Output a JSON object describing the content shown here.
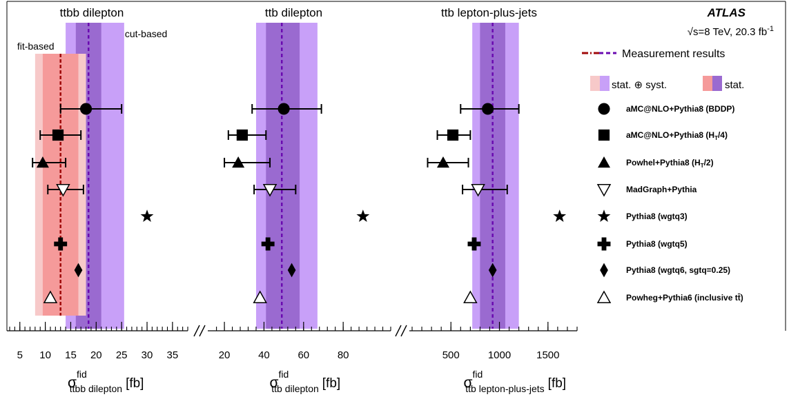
{
  "experiment": "ATLAS",
  "energy": "√s=8 TeV, 20.3 fb",
  "energy_sup": "-1",
  "colors": {
    "cut_outer": "#c8a0f8",
    "cut_inner": "#9a6ad0",
    "cut_line": "#6a0ab0",
    "fit_outer": "#f7c9c9",
    "fit_inner": "#f59a9a",
    "fit_line": "#a00a0a"
  },
  "legend": {
    "measurement": "Measurement results",
    "stat_syst": "stat. ⊕ syst.",
    "stat": "stat.",
    "generators": [
      {
        "marker": "filled-circle",
        "label": "aMC@NLO+Pythia8 (BDDP)"
      },
      {
        "marker": "filled-square",
        "label": "aMC@NLO+Pythia8 (H",
        "sub": "T",
        "tail": "/4)"
      },
      {
        "marker": "filled-triangle",
        "label": "Powhel+Pythia8 (H",
        "sub": "T",
        "tail": "/2)"
      },
      {
        "marker": "open-triangle-down",
        "label": "MadGraph+Pythia"
      },
      {
        "marker": "star",
        "label": "Pythia8 (wgtq3)"
      },
      {
        "marker": "cross",
        "label": "Pythia8 (wgtq5)"
      },
      {
        "marker": "diamond",
        "label": "Pythia8 (wgtq6, sgtq=0.25)"
      },
      {
        "marker": "open-triangle-up",
        "label": "Powheg+Pythia6 (inclusive tt̄)"
      }
    ]
  },
  "chart_data": [
    {
      "type": "scatter",
      "title": "ttbb dilepton",
      "xlabel": "σ",
      "xlabel_sup": "fid",
      "xlabel_sub": "ttbb dilepton",
      "xlabel_unit": "[fb]",
      "xlim": [
        3,
        38
      ],
      "xticks": [
        5,
        10,
        15,
        20,
        25,
        30,
        35
      ],
      "xtick_labels": [
        "5",
        "10",
        "15",
        "20",
        "25",
        "30",
        "35"
      ],
      "measurements": [
        {
          "name": "cut-based",
          "value": 18.5,
          "total": [
            14.0,
            25.5
          ],
          "stat": [
            16.0,
            21.0
          ]
        },
        {
          "name": "fit-based",
          "value": 13.0,
          "total": [
            8.0,
            18.0
          ],
          "stat": [
            9.5,
            16.5
          ]
        }
      ],
      "predictions": [
        {
          "marker": "filled-circle",
          "value": 18.0,
          "err": [
            13.0,
            25.0
          ]
        },
        {
          "marker": "filled-square",
          "value": 12.5,
          "err": [
            9.0,
            17.0
          ]
        },
        {
          "marker": "filled-triangle",
          "value": 9.5,
          "err": [
            7.5,
            14.0
          ]
        },
        {
          "marker": "open-triangle-down",
          "value": 13.5,
          "err": [
            10.5,
            17.5
          ]
        },
        {
          "marker": "star",
          "value": 30.0,
          "err": null
        },
        {
          "marker": "cross",
          "value": 13.0,
          "err": null
        },
        {
          "marker": "diamond",
          "value": 16.5,
          "err": null
        },
        {
          "marker": "open-triangle-up",
          "value": 11.0,
          "err": null
        }
      ]
    },
    {
      "type": "scatter",
      "title": "ttb dilepton",
      "xlabel": "σ",
      "xlabel_sup": "fid",
      "xlabel_sub": "ttb dilepton",
      "xlabel_unit": "[fb]",
      "xlim": [
        13,
        104
      ],
      "xticks": [
        20,
        40,
        60,
        80
      ],
      "xtick_labels": [
        "20",
        "40",
        "60",
        "80"
      ],
      "measurements": [
        {
          "name": "cut-based",
          "value": 49.0,
          "total": [
            36.0,
            67.0
          ],
          "stat": [
            41.0,
            58.0
          ]
        }
      ],
      "predictions": [
        {
          "marker": "filled-circle",
          "value": 50.0,
          "err": [
            34.0,
            69.0
          ]
        },
        {
          "marker": "filled-square",
          "value": 29.0,
          "err": [
            22.0,
            41.0
          ]
        },
        {
          "marker": "filled-triangle",
          "value": 27.0,
          "err": [
            20.0,
            43.0
          ]
        },
        {
          "marker": "open-triangle-down",
          "value": 43.0,
          "err": [
            35.0,
            56.0
          ]
        },
        {
          "marker": "star",
          "value": 90.0,
          "err": null
        },
        {
          "marker": "cross",
          "value": 42.0,
          "err": null
        },
        {
          "marker": "diamond",
          "value": 54.0,
          "err": null
        },
        {
          "marker": "open-triangle-up",
          "value": 38.0,
          "err": null
        }
      ]
    },
    {
      "type": "scatter",
      "title": "ttb lepton-plus-jets",
      "xlabel": "σ",
      "xlabel_sup": "fid",
      "xlabel_sub": "ttb lepton-plus-jets",
      "xlabel_unit": "[fb]",
      "xlim": [
        100,
        1800
      ],
      "xticks": [
        500,
        1000,
        1500
      ],
      "xtick_labels": [
        "500",
        "1000",
        "1500"
      ],
      "measurements": [
        {
          "name": "cut-based",
          "value": 930,
          "total": [
            720,
            1200
          ],
          "stat": [
            800,
            1060
          ]
        }
      ],
      "predictions": [
        {
          "marker": "filled-circle",
          "value": 880,
          "err": [
            600,
            1200
          ]
        },
        {
          "marker": "filled-square",
          "value": 520,
          "err": [
            360,
            700
          ]
        },
        {
          "marker": "filled-triangle",
          "value": 420,
          "err": [
            260,
            680
          ]
        },
        {
          "marker": "open-triangle-down",
          "value": 780,
          "err": [
            620,
            1080
          ]
        },
        {
          "marker": "star",
          "value": 1620,
          "err": null
        },
        {
          "marker": "cross",
          "value": 740,
          "err": null
        },
        {
          "marker": "diamond",
          "value": 930,
          "err": null
        },
        {
          "marker": "open-triangle-up",
          "value": 700,
          "err": null
        }
      ]
    }
  ]
}
